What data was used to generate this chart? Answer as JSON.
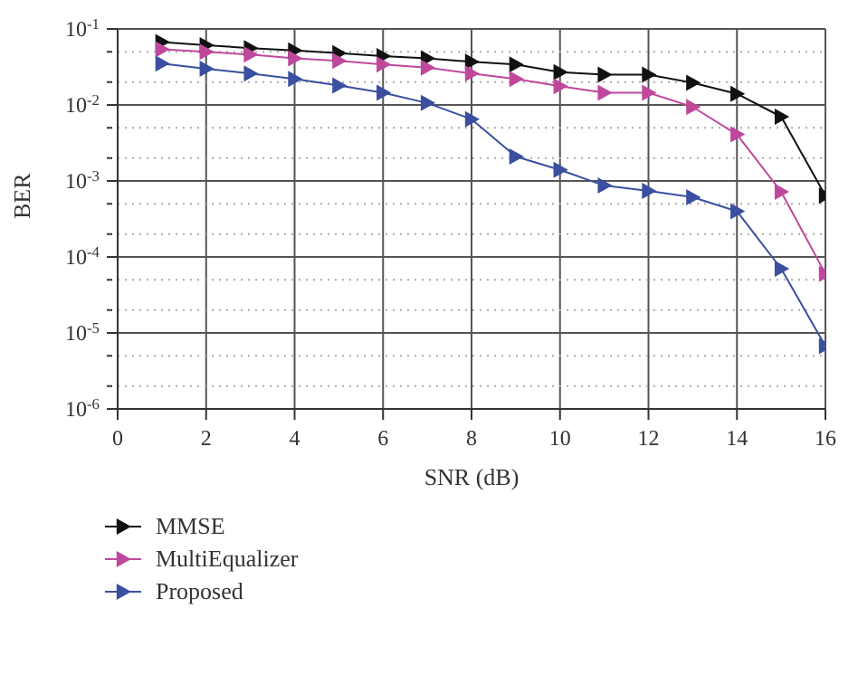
{
  "chart_data": {
    "type": "line",
    "xlabel": "SNR (dB)",
    "ylabel": "BER",
    "x": [
      1,
      2,
      3,
      4,
      5,
      6,
      7,
      8,
      9,
      10,
      11,
      12,
      13,
      14,
      15,
      16
    ],
    "series": [
      {
        "name": "MMSE",
        "color": "#111111",
        "values": [
          0.067,
          0.061,
          0.056,
          0.052,
          0.048,
          0.044,
          0.041,
          0.037,
          0.034,
          0.027,
          0.025,
          0.025,
          0.0196,
          0.014,
          0.007,
          0.00064
        ]
      },
      {
        "name": "MultiEqualizer",
        "color": "#c0489c",
        "values": [
          0.054,
          0.05,
          0.046,
          0.041,
          0.038,
          0.034,
          0.031,
          0.026,
          0.022,
          0.0177,
          0.0145,
          0.0145,
          0.0094,
          0.0041,
          0.00072,
          6e-05
        ]
      },
      {
        "name": "Proposed",
        "color": "#3a4fa0",
        "values": [
          0.035,
          0.03,
          0.026,
          0.022,
          0.018,
          0.0145,
          0.0106,
          0.0065,
          0.0021,
          0.0014,
          0.00087,
          0.00074,
          0.00061,
          0.0004,
          7e-05,
          6.7e-06
        ]
      }
    ],
    "log": "y",
    "xlim": [
      0,
      16
    ],
    "xticks": [
      0,
      2,
      4,
      6,
      8,
      10,
      12,
      14,
      16
    ],
    "ylim": [
      1e-06,
      0.1
    ],
    "yticks": [
      {
        "value": 1e-06,
        "label": "10$^{-6}$"
      },
      {
        "value": 2e-06,
        "label": null
      },
      {
        "value": 5e-06,
        "label": null
      },
      {
        "value": 1e-05,
        "label": "10$^{-5}$"
      },
      {
        "value": 2e-05,
        "label": null
      },
      {
        "value": 5e-05,
        "label": null
      },
      {
        "value": 0.0001,
        "label": "10$^{-4}$"
      },
      {
        "value": 0.0002,
        "label": null
      },
      {
        "value": 0.0005,
        "label": null
      },
      {
        "value": 0.001,
        "label": "10$^{-3}$"
      },
      {
        "value": 0.002,
        "label": null
      },
      {
        "value": 0.005,
        "label": null
      },
      {
        "value": 0.01,
        "label": "10$^{-2}$"
      },
      {
        "value": 0.02,
        "label": null
      },
      {
        "value": 0.05,
        "label": null
      },
      {
        "value": 0.1,
        "label": "10$^{-1}$"
      }
    ],
    "grid": true,
    "legend": "bottom",
    "marker": "triangle",
    "line_style": "solid"
  }
}
